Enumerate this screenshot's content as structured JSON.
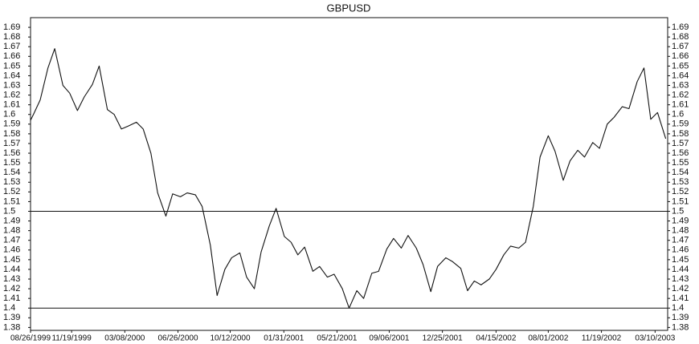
{
  "chart_data": {
    "type": "line",
    "title": "GBPUSD",
    "x": [
      "1999-08-26",
      "1999-09-01",
      "1999-09-15",
      "1999-10-01",
      "1999-10-15",
      "1999-11-01",
      "1999-11-15",
      "1999-12-01",
      "1999-12-15",
      "2000-01-01",
      "2000-01-15",
      "2000-02-01",
      "2000-02-15",
      "2000-03-01",
      "2000-03-15",
      "2000-04-01",
      "2000-04-15",
      "2000-05-01",
      "2000-05-15",
      "2000-06-01",
      "2000-06-15",
      "2000-07-01",
      "2000-07-15",
      "2000-08-01",
      "2000-08-15",
      "2000-09-01",
      "2000-09-15",
      "2000-10-01",
      "2000-10-15",
      "2000-11-01",
      "2000-11-15",
      "2000-12-01",
      "2000-12-15",
      "2001-01-01",
      "2001-01-15",
      "2001-02-01",
      "2001-02-15",
      "2001-03-01",
      "2001-03-15",
      "2001-04-01",
      "2001-04-15",
      "2001-05-01",
      "2001-05-15",
      "2001-06-01",
      "2001-06-15",
      "2001-07-01",
      "2001-07-15",
      "2001-08-01",
      "2001-08-15",
      "2001-09-01",
      "2001-09-15",
      "2001-10-01",
      "2001-10-15",
      "2001-11-01",
      "2001-11-15",
      "2001-12-01",
      "2001-12-15",
      "2002-01-01",
      "2002-01-15",
      "2002-02-01",
      "2002-02-15",
      "2002-03-01",
      "2002-03-15",
      "2002-04-01",
      "2002-04-15",
      "2002-05-01",
      "2002-05-15",
      "2002-06-01",
      "2002-06-15",
      "2002-07-01",
      "2002-07-15",
      "2002-08-01",
      "2002-08-15",
      "2002-09-01",
      "2002-09-15",
      "2002-10-01",
      "2002-10-15",
      "2002-11-01",
      "2002-11-15",
      "2002-12-01",
      "2002-12-15",
      "2003-01-01",
      "2003-01-15",
      "2003-02-01",
      "2003-02-15",
      "2003-03-01",
      "2003-03-15",
      "2003-04-01"
    ],
    "series": [
      {
        "name": "GBPUSD",
        "color": "#111111",
        "values": [
          1.594,
          1.6,
          1.615,
          1.648,
          1.668,
          1.63,
          1.622,
          1.604,
          1.618,
          1.631,
          1.65,
          1.605,
          1.6,
          1.585,
          1.588,
          1.592,
          1.585,
          1.56,
          1.519,
          1.495,
          1.518,
          1.515,
          1.519,
          1.517,
          1.505,
          1.465,
          1.413,
          1.44,
          1.452,
          1.457,
          1.432,
          1.42,
          1.458,
          1.485,
          1.503,
          1.474,
          1.468,
          1.455,
          1.463,
          1.438,
          1.443,
          1.432,
          1.435,
          1.42,
          1.4,
          1.418,
          1.41,
          1.436,
          1.438,
          1.461,
          1.472,
          1.462,
          1.475,
          1.462,
          1.445,
          1.417,
          1.443,
          1.452,
          1.448,
          1.441,
          1.418,
          1.428,
          1.424,
          1.43,
          1.44,
          1.455,
          1.464,
          1.462,
          1.468,
          1.505,
          1.556,
          1.578,
          1.562,
          1.532,
          1.552,
          1.563,
          1.556,
          1.571,
          1.565,
          1.59,
          1.597,
          1.608,
          1.606,
          1.634,
          1.648,
          1.595,
          1.602,
          1.575
        ]
      }
    ],
    "xlim": [
      "1999-08-26",
      "2003-04-05"
    ],
    "xticks": [
      {
        "value": "1999-08-26",
        "label": "08/26/1999"
      },
      {
        "value": "1999-11-19",
        "label": "11/19/1999"
      },
      {
        "value": "2000-03-08",
        "label": "03/08/2000"
      },
      {
        "value": "2000-06-26",
        "label": "06/26/2000"
      },
      {
        "value": "2000-10-12",
        "label": "10/12/2000"
      },
      {
        "value": "2001-01-31",
        "label": "01/31/2001"
      },
      {
        "value": "2001-05-21",
        "label": "05/21/2001"
      },
      {
        "value": "2001-09-06",
        "label": "09/06/2001"
      },
      {
        "value": "2001-12-25",
        "label": "12/25/2001"
      },
      {
        "value": "2002-04-15",
        "label": "04/15/2002"
      },
      {
        "value": "2002-08-01",
        "label": "08/01/2002"
      },
      {
        "value": "2002-11-19",
        "label": "11/19/2002"
      },
      {
        "value": "2003-03-10",
        "label": "03/10/2003"
      }
    ],
    "ylim": [
      1.377,
      1.7
    ],
    "yticks": [
      1.38,
      1.39,
      1.4,
      1.41,
      1.42,
      1.43,
      1.44,
      1.45,
      1.46,
      1.47,
      1.48,
      1.49,
      1.5,
      1.51,
      1.52,
      1.53,
      1.54,
      1.55,
      1.56,
      1.57,
      1.58,
      1.59,
      1.6,
      1.61,
      1.62,
      1.63,
      1.64,
      1.65,
      1.66,
      1.67,
      1.68,
      1.69
    ],
    "y2lim": [
      1.377,
      1.7
    ],
    "y2ticks": [
      1.38,
      1.39,
      1.4,
      1.41,
      1.42,
      1.43,
      1.44,
      1.45,
      1.46,
      1.47,
      1.48,
      1.49,
      1.5,
      1.51,
      1.52,
      1.53,
      1.54,
      1.55,
      1.56,
      1.57,
      1.58,
      1.59,
      1.6,
      1.61,
      1.62,
      1.63,
      1.64,
      1.65,
      1.66,
      1.67,
      1.68,
      1.69
    ],
    "hlines": [
      1.5,
      1.4
    ],
    "grid": false
  }
}
